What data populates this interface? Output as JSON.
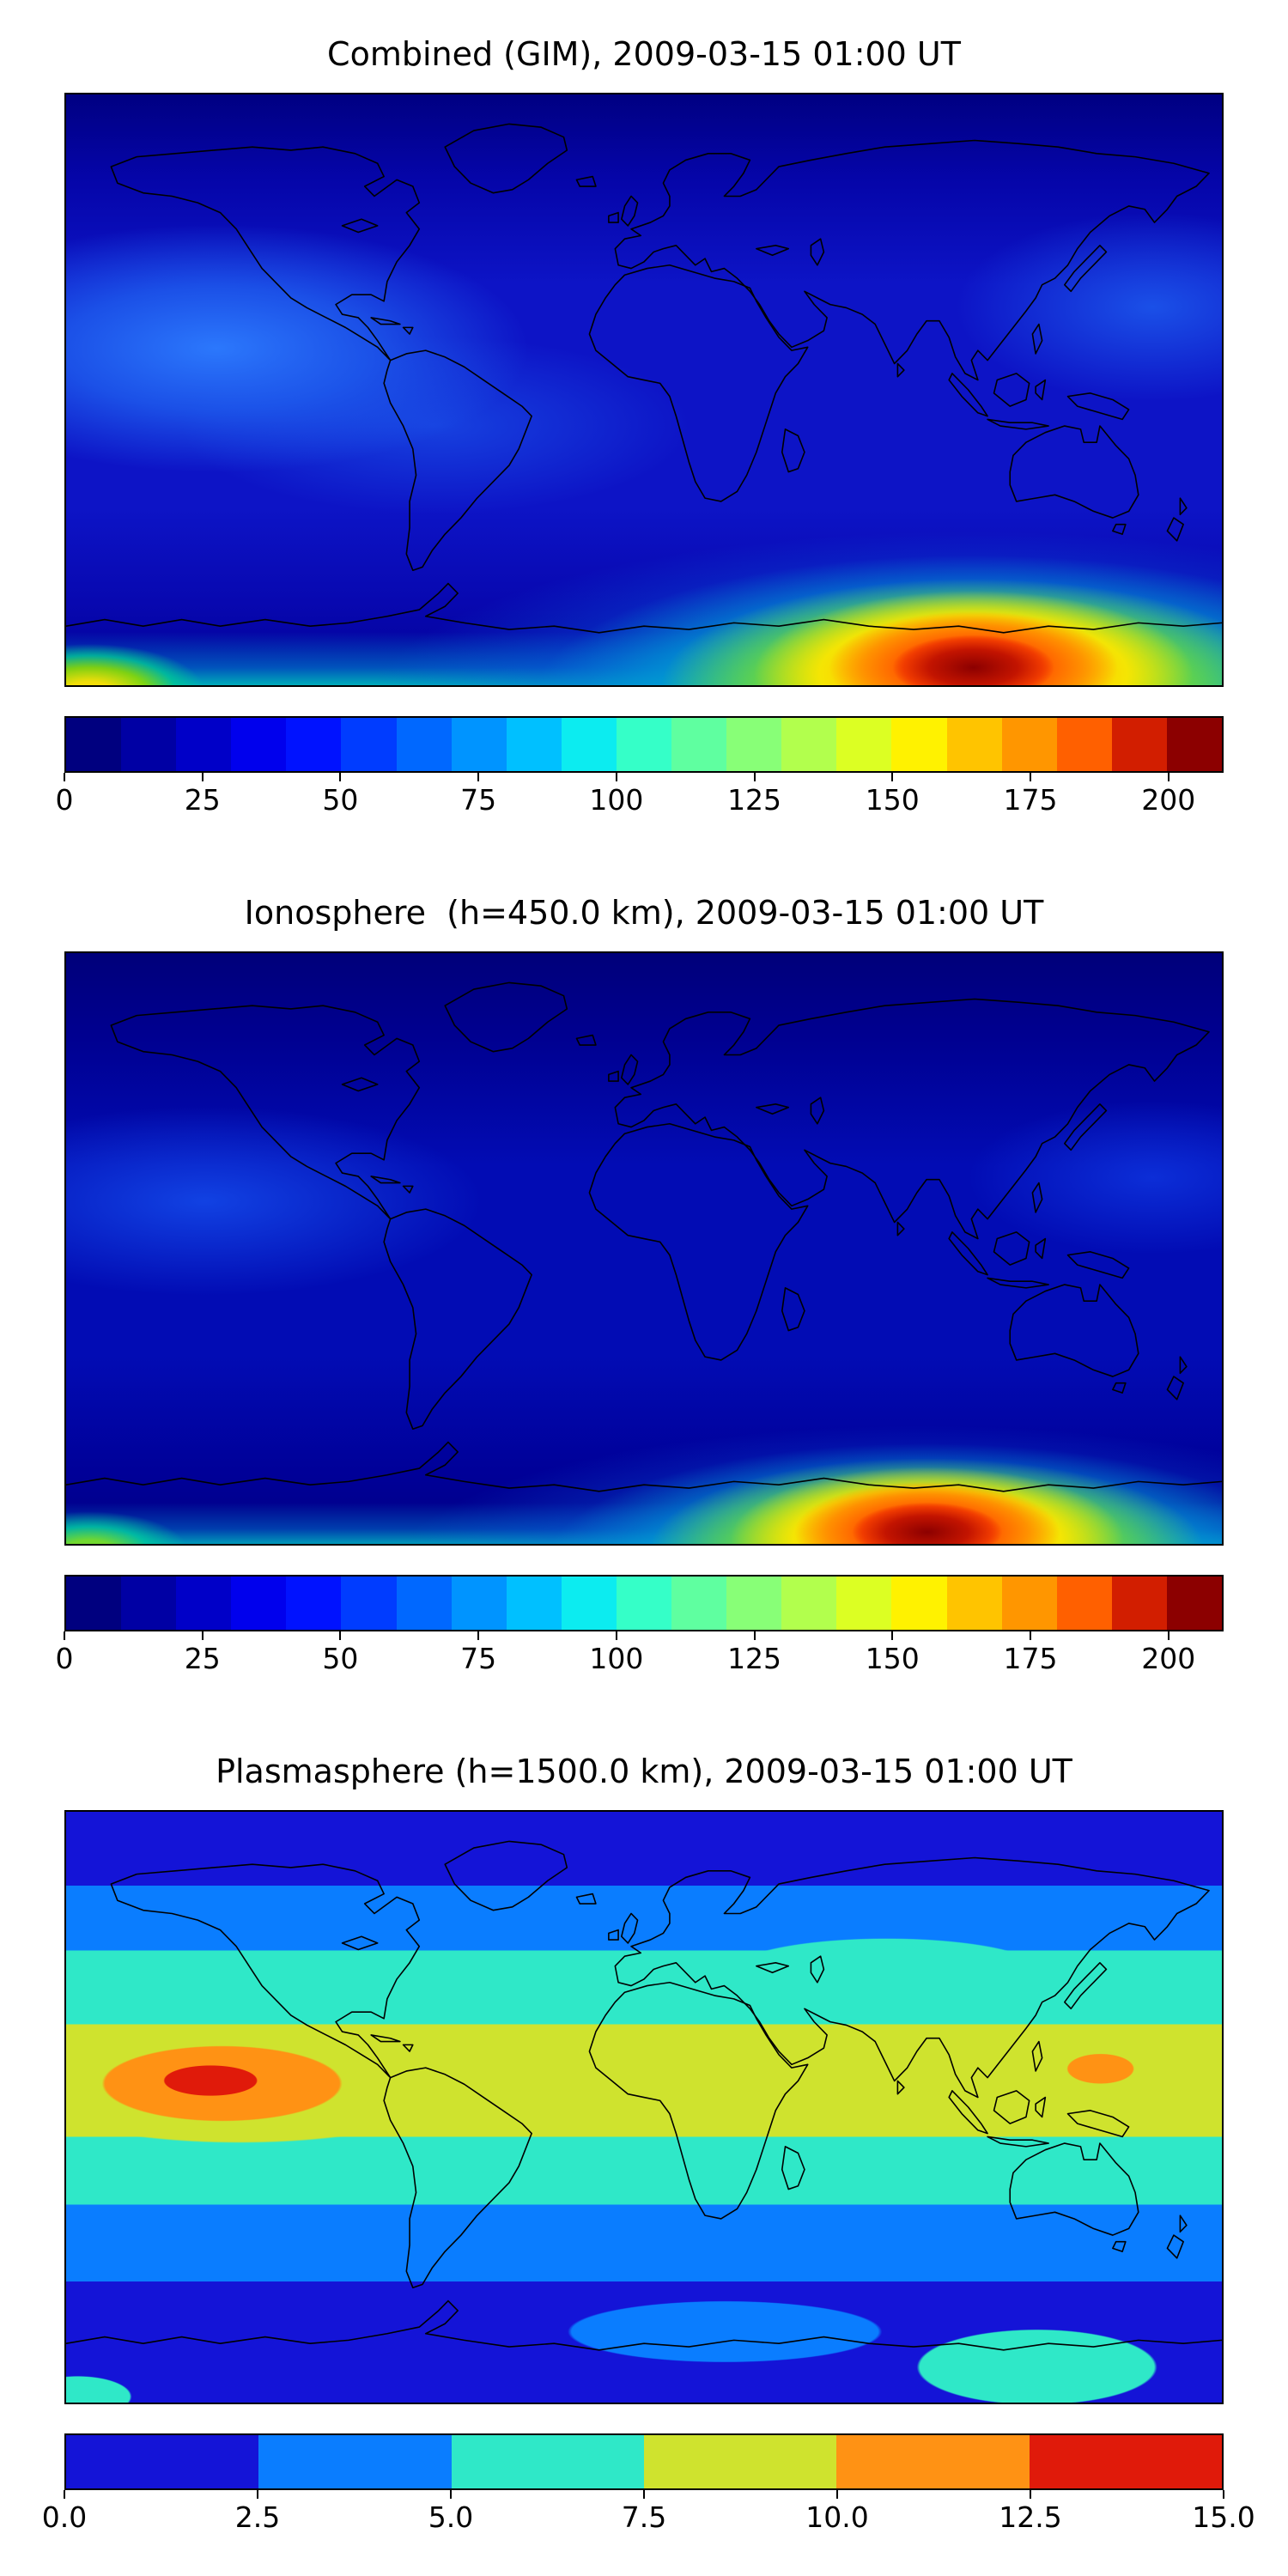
{
  "figure": {
    "background_color": "#ffffff",
    "panels": [
      {
        "id": "combined",
        "title": "Combined (GIM), 2009-03-15 01:00 UT",
        "colorbar": {
          "style": "stepped-jet",
          "range": [
            0,
            210
          ],
          "colors": [
            "#00007f",
            "#0000a4",
            "#0000c8",
            "#0000ed",
            "#0012ff",
            "#003cff",
            "#0068ff",
            "#0094ff",
            "#00c0ff",
            "#0cecf0",
            "#35ffc8",
            "#5fffa0",
            "#88ff77",
            "#b2ff4d",
            "#dcff23",
            "#fff200",
            "#ffc400",
            "#ff9600",
            "#ff6000",
            "#d21e00",
            "#8c0000"
          ],
          "ticks": [
            {
              "value": 0,
              "label": "0"
            },
            {
              "value": 25,
              "label": "25"
            },
            {
              "value": 50,
              "label": "50"
            },
            {
              "value": 75,
              "label": "75"
            },
            {
              "value": 100,
              "label": "100"
            },
            {
              "value": 125,
              "label": "125"
            },
            {
              "value": 150,
              "label": "150"
            },
            {
              "value": 175,
              "label": "175"
            },
            {
              "value": 200,
              "label": "200"
            }
          ]
        }
      },
      {
        "id": "ionosphere",
        "title": "Ionosphere  (h=450.0 km), 2009-03-15 01:00 UT",
        "colorbar": {
          "style": "stepped-jet",
          "range": [
            0,
            210
          ],
          "colors": [
            "#00007f",
            "#0000a4",
            "#0000c8",
            "#0000ed",
            "#0012ff",
            "#003cff",
            "#0068ff",
            "#0094ff",
            "#00c0ff",
            "#0cecf0",
            "#35ffc8",
            "#5fffa0",
            "#88ff77",
            "#b2ff4d",
            "#dcff23",
            "#fff200",
            "#ffc400",
            "#ff9600",
            "#ff6000",
            "#d21e00",
            "#8c0000"
          ],
          "ticks": [
            {
              "value": 0,
              "label": "0"
            },
            {
              "value": 25,
              "label": "25"
            },
            {
              "value": 50,
              "label": "50"
            },
            {
              "value": 75,
              "label": "75"
            },
            {
              "value": 100,
              "label": "100"
            },
            {
              "value": 125,
              "label": "125"
            },
            {
              "value": 150,
              "label": "150"
            },
            {
              "value": 175,
              "label": "175"
            },
            {
              "value": 200,
              "label": "200"
            }
          ]
        }
      },
      {
        "id": "plasmasphere",
        "title": "Plasmasphere (h=1500.0 km), 2009-03-15 01:00 UT",
        "colorbar": {
          "style": "discrete-6",
          "range": [
            0,
            15
          ],
          "colors": [
            "#1414d7",
            "#0a7dff",
            "#2fe8c8",
            "#cfe32e",
            "#ff9214",
            "#e01a0a"
          ],
          "ticks": [
            {
              "value": 0,
              "label": "0.0"
            },
            {
              "value": 2.5,
              "label": "2.5"
            },
            {
              "value": 5,
              "label": "5.0"
            },
            {
              "value": 7.5,
              "label": "7.5"
            },
            {
              "value": 10,
              "label": "10.0"
            },
            {
              "value": 12.5,
              "label": "12.5"
            },
            {
              "value": 15,
              "label": "15.0"
            }
          ]
        }
      }
    ]
  },
  "chart_data": [
    {
      "type": "heatmap",
      "title": "Combined (GIM), 2009-03-15 01:00 UT",
      "projection": "equirectangular world map with black coastlines",
      "colormap": "jet",
      "vmin": 0,
      "vmax": 210,
      "colorbar_ticks": [
        0,
        25,
        50,
        75,
        100,
        125,
        150,
        175,
        200
      ],
      "lon_range": [
        -180,
        180
      ],
      "lat_range": [
        -90,
        90
      ],
      "grid_lons": [
        -160,
        -120,
        -80,
        -40,
        0,
        40,
        80,
        120,
        160
      ],
      "grid_lats": [
        75,
        45,
        15,
        -15,
        -45,
        -75
      ],
      "values_estimated": [
        [
          8,
          8,
          8,
          8,
          8,
          8,
          8,
          10,
          10
        ],
        [
          20,
          15,
          10,
          8,
          8,
          8,
          10,
          15,
          20
        ],
        [
          35,
          28,
          18,
          12,
          10,
          12,
          18,
          25,
          30
        ],
        [
          25,
          22,
          18,
          15,
          15,
          18,
          22,
          28,
          32
        ],
        [
          18,
          15,
          12,
          12,
          15,
          20,
          32,
          60,
          85
        ],
        [
          55,
          32,
          25,
          22,
          30,
          60,
          130,
          205,
          160
        ]
      ],
      "features": [
        "intense enhancement peaking ~205 at bottom edge near 130E, 70S with red core and yellow-green halo",
        "secondary yellow-green patch ~60 at far bottom-left corner",
        "slightly lighter blue region ~30 over central Pacific low latitudes (left side)",
        "thin cyan-green band along the entire bottom edge"
      ]
    },
    {
      "type": "heatmap",
      "title": "Ionosphere  (h=450.0 km), 2009-03-15 01:00 UT",
      "projection": "equirectangular world map with black coastlines",
      "colormap": "jet",
      "vmin": 0,
      "vmax": 210,
      "colorbar_ticks": [
        0,
        25,
        50,
        75,
        100,
        125,
        150,
        175,
        200
      ],
      "lon_range": [
        -180,
        180
      ],
      "lat_range": [
        -90,
        90
      ],
      "grid_lons": [
        -160,
        -120,
        -80,
        -40,
        0,
        40,
        80,
        120,
        160
      ],
      "grid_lats": [
        75,
        45,
        15,
        -15,
        -45,
        -75
      ],
      "values_estimated": [
        [
          5,
          5,
          5,
          5,
          5,
          5,
          5,
          6,
          6
        ],
        [
          12,
          9,
          6,
          5,
          5,
          5,
          6,
          9,
          12
        ],
        [
          22,
          18,
          10,
          7,
          6,
          7,
          10,
          14,
          18
        ],
        [
          16,
          13,
          10,
          8,
          8,
          10,
          12,
          15,
          18
        ],
        [
          10,
          8,
          8,
          8,
          10,
          14,
          25,
          50,
          75
        ],
        [
          45,
          25,
          18,
          15,
          25,
          55,
          120,
          200,
          150
        ]
      ],
      "features": [
        "overall darker blue background than combined map",
        "compact intense enhancement ~200 at bottom edge near 120E, 72S",
        "small green patch at bottom-left corner",
        "faint lighter blue over central Pacific"
      ]
    },
    {
      "type": "heatmap",
      "title": "Plasmasphere (h=1500.0 km), 2009-03-15 01:00 UT",
      "projection": "equirectangular world map with black coastlines",
      "colormap": "discrete 6-level jet-like",
      "vmin": 0,
      "vmax": 15,
      "level_boundaries": [
        0,
        2.5,
        5,
        7.5,
        10,
        12.5,
        15
      ],
      "colorbar_ticks": [
        0,
        2.5,
        5,
        7.5,
        10,
        12.5,
        15
      ],
      "lon_range": [
        -180,
        180
      ],
      "lat_range": [
        -90,
        90
      ],
      "grid_lons": [
        -160,
        -120,
        -80,
        -40,
        0,
        40,
        80,
        120,
        160
      ],
      "grid_lats": [
        75,
        45,
        15,
        -15,
        -45,
        -75
      ],
      "values_estimated": [
        [
          1.5,
          1.5,
          1.5,
          1.5,
          1.5,
          1.5,
          1.5,
          1.5,
          1.5
        ],
        [
          3.5,
          3,
          2.5,
          3.5,
          4,
          4,
          3.5,
          3.5,
          3
        ],
        [
          11,
          13,
          8.5,
          8,
          9,
          8.5,
          8,
          9,
          10.5
        ],
        [
          7,
          8,
          6.5,
          6,
          6.5,
          6,
          6,
          7,
          7.5
        ],
        [
          3,
          3.5,
          3,
          2.5,
          2,
          2,
          3,
          4,
          4.5
        ],
        [
          1.5,
          1.5,
          1,
          1,
          1,
          1,
          2,
          5.5,
          3
        ]
      ],
      "features": [
        "horizontal banded structure symmetric about low latitudes",
        "orange patch 10-12.5 with red core 12.5-15 over eastern Pacific near 140W, 5N",
        "small orange spot near 140E, 10N",
        "cyan patch 5-7.5 at bottom right near 120E, 70S",
        "yellow-green equatorial band 7.5-10 spanning most longitudes"
      ]
    }
  ]
}
